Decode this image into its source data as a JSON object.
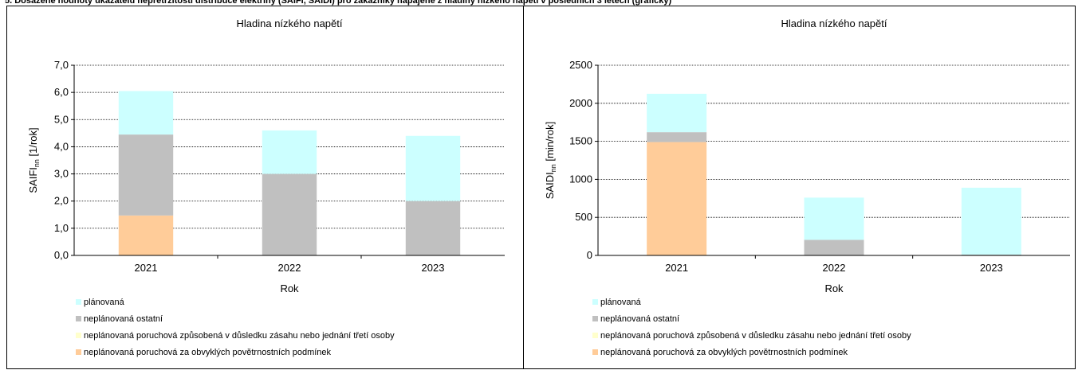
{
  "page": {
    "heading": "5. Dosažené hodnoty ukazatelů nepřetržitosti distribuce elektřiny (SAIFI, SAIDI) pro zákazníky napájené z hladiny nízkého napětí v posledních 3 letech (grafický)"
  },
  "legend": [
    {
      "label": "plánovaná",
      "color": "#CCFFFF"
    },
    {
      "label": "neplánovaná ostatní",
      "color": "#C0C0C0"
    },
    {
      "label": "neplánovaná poruchová způsobená v důsledku zásahu nebo jednání třetí osoby",
      "color": "#FFFFCC"
    },
    {
      "label": "neplánovaná poruchová za obvyklých povětrnostních podmínek",
      "color": "#FFCC99"
    }
  ],
  "chart_data": [
    {
      "type": "bar",
      "stacked": true,
      "title": "Hladina nízkého napětí",
      "xlabel": "Rok",
      "ylabel_main": "SAIFI",
      "ylabel_sub": "nn",
      "ylabel_unit": " [1/rok]",
      "categories": [
        "2021",
        "2022",
        "2023"
      ],
      "ylim": [
        0,
        7
      ],
      "yticks": [
        "0,0",
        "1,0",
        "2,0",
        "3,0",
        "4,0",
        "5,0",
        "6,0",
        "7,0"
      ],
      "grid": true,
      "series": [
        {
          "name": "neplánovaná poruchová za obvyklých povětrnostních podmínek",
          "color": "#FFCC99",
          "values": [
            1.47,
            0.0,
            0.0
          ]
        },
        {
          "name": "neplánovaná poruchová způsobená v důsledku zásahu nebo jednání třetí osoby",
          "color": "#FFFFCC",
          "values": [
            0.0,
            0.0,
            0.0
          ]
        },
        {
          "name": "neplánovaná ostatní",
          "color": "#C0C0C0",
          "values": [
            2.98,
            3.0,
            2.0
          ]
        },
        {
          "name": "plánovaná",
          "color": "#CCFFFF",
          "values": [
            1.6,
            1.6,
            2.4
          ]
        }
      ]
    },
    {
      "type": "bar",
      "stacked": true,
      "title": "Hladina nízkého napětí",
      "xlabel": "Rok",
      "ylabel_main": "SAIDI",
      "ylabel_sub": "nn",
      "ylabel_unit": " [min/rok]",
      "categories": [
        "2021",
        "2022",
        "2023"
      ],
      "ylim": [
        0,
        2500
      ],
      "yticks": [
        "0",
        "500",
        "1000",
        "1500",
        "2000",
        "2500"
      ],
      "grid": true,
      "series": [
        {
          "name": "neplánovaná poruchová za obvyklých povětrnostních podmínek",
          "color": "#FFCC99",
          "values": [
            1490,
            0,
            0
          ]
        },
        {
          "name": "neplánovaná poruchová způsobená v důsledku zásahu nebo jednání třetí osoby",
          "color": "#FFFFCC",
          "values": [
            0,
            0,
            0
          ]
        },
        {
          "name": "neplánovaná ostatní",
          "color": "#C0C0C0",
          "values": [
            130,
            205,
            10
          ]
        },
        {
          "name": "plánovaná",
          "color": "#CCFFFF",
          "values": [
            505,
            555,
            880
          ]
        }
      ]
    }
  ]
}
